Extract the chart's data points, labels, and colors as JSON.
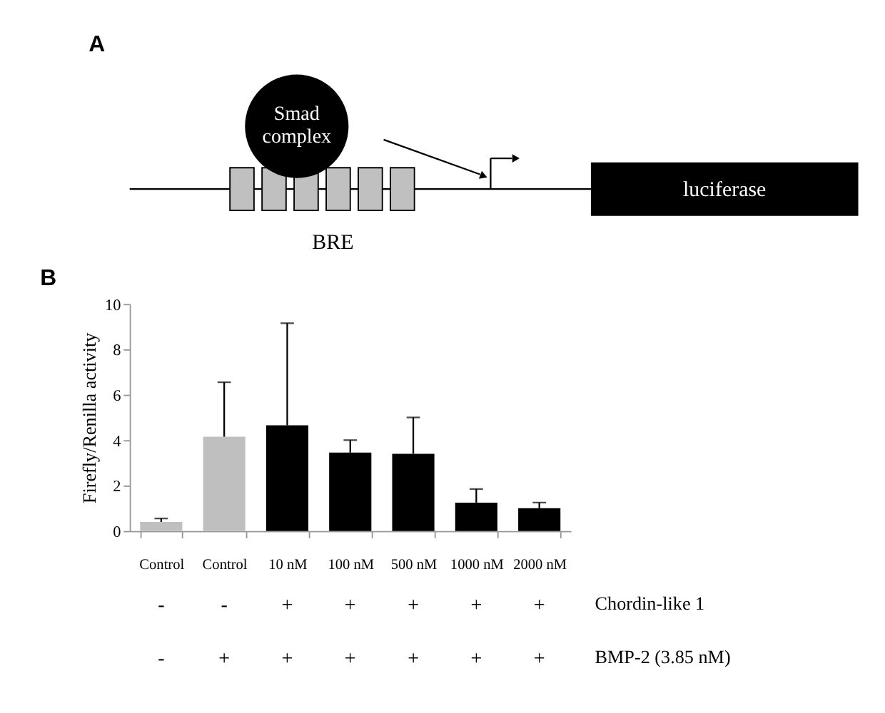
{
  "chart_data": [
    {
      "type": "other",
      "title": "A",
      "annotations": [
        "Smad complex",
        "BRE",
        "luciferase"
      ]
    },
    {
      "type": "bar",
      "title": "B",
      "ylabel": "Firefly/Renilla activity",
      "categories": [
        "Control",
        "Control",
        "10 nM",
        "100 nM",
        "500 nM",
        "1000 nM",
        "2000 nM"
      ],
      "values": [
        0.4,
        4.15,
        4.65,
        3.45,
        3.4,
        1.25,
        1.0
      ],
      "errors": [
        [
          0.4,
          0.55
        ],
        [
          4.15,
          6.55
        ],
        [
          4.65,
          9.15
        ],
        [
          3.45,
          4.0
        ],
        [
          3.4,
          5.0
        ],
        [
          1.25,
          1.85
        ],
        [
          1.0,
          1.25
        ]
      ],
      "colors": [
        "#bfbfbf",
        "#bfbfbf",
        "#000000",
        "#000000",
        "#000000",
        "#000000",
        "#000000"
      ],
      "ylim": [
        0,
        10
      ],
      "yticks": [
        0,
        2,
        4,
        6,
        8,
        10
      ],
      "grid": false,
      "annotations": [
        "-",
        "-",
        "+",
        "+",
        "+",
        "+",
        "+",
        "Chordin-like 1",
        "-",
        "+",
        "+",
        "+",
        "+",
        "+",
        "+",
        "BMP-2 (3.85 nM)"
      ]
    }
  ]
}
